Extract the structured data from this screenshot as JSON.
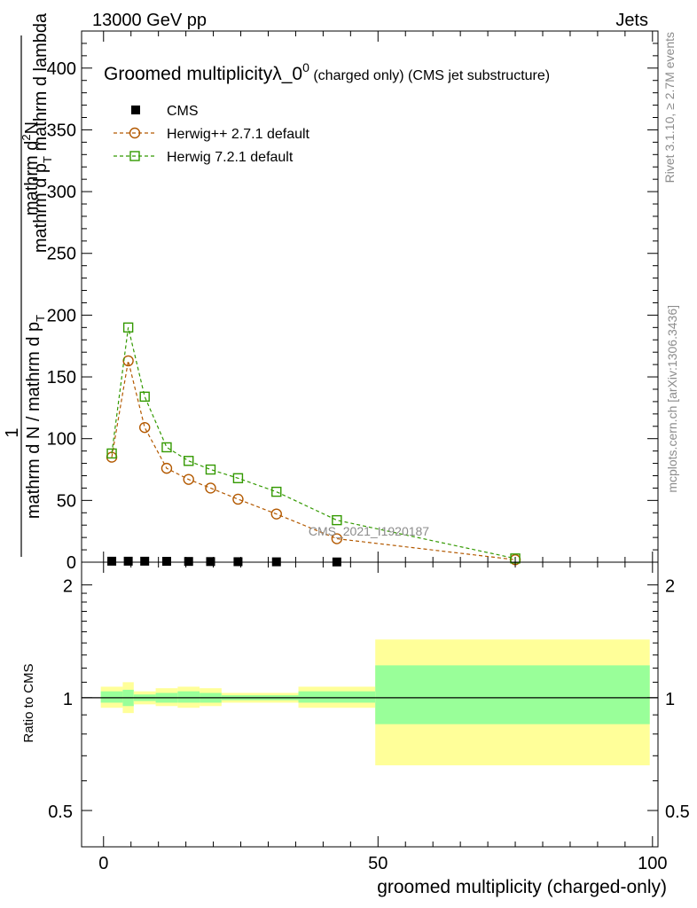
{
  "header": {
    "left": "13000 GeV pp",
    "right": "Jets"
  },
  "side_labels": {
    "rivet": "Rivet 3.1.10, ≥ 2.7M events",
    "mcplots": "mcplots.cern.ch [arXiv:1306.3436]"
  },
  "watermark": "CMS_2021_I1920187",
  "chart_data": [
    {
      "type": "line",
      "title_main": "Groomed multiplicityλ_0",
      "title_sup": "0",
      "title_sub": " (charged only) (CMS jet substructure)",
      "ylabel_num": "mathrm d²N",
      "ylabel_den": "mathrm d p_{T} mathrm d lambda",
      "ylabel_num_display": "mathrm d",
      "ylabel_num_sup": "2",
      "ylabel_num_tail": "N",
      "ylabel_den_display_a": "mathrm d p",
      "ylabel_den_display_sub": "T",
      "ylabel_den_display_b": " mathrm d lambda",
      "ylabel_outer_num": "1",
      "ylabel_outer_den_a": "mathrm d N / mathrm d p",
      "ylabel_outer_den_sub": "T",
      "ylim": [
        0,
        430
      ],
      "xlim": [
        -4,
        101
      ],
      "yticks": [
        0,
        50,
        100,
        150,
        200,
        250,
        300,
        350,
        400
      ],
      "ytick_labels": [
        "0",
        "50",
        "100",
        "150",
        "200",
        "250",
        "300",
        "350",
        "400"
      ],
      "legend_position": "top-left",
      "series": [
        {
          "name": "CMS",
          "color": "#000000",
          "marker": "filled-square",
          "x": [
            1.5,
            4.5,
            7.5,
            11.5,
            15.5,
            19.5,
            24.5,
            31.5,
            42.5
          ],
          "y": [
            0.8,
            0.8,
            0.8,
            0.7,
            0.6,
            0.5,
            0.4,
            0.3,
            0.2
          ]
        },
        {
          "name": "Herwig++ 2.7.1 default",
          "color": "#b35900",
          "marker": "open-circle",
          "x": [
            1.5,
            4.5,
            7.5,
            11.5,
            15.5,
            19.5,
            24.5,
            31.5,
            42.5,
            75
          ],
          "y": [
            85,
            163,
            109,
            76,
            67,
            60,
            51,
            39,
            19,
            2
          ]
        },
        {
          "name": "Herwig 7.2.1 default",
          "color": "#339900",
          "marker": "open-square",
          "x": [
            1.5,
            4.5,
            7.5,
            11.5,
            15.5,
            19.5,
            24.5,
            31.5,
            42.5,
            75
          ],
          "y": [
            88,
            190,
            134,
            93,
            82,
            75,
            68,
            57,
            34,
            3
          ]
        }
      ]
    },
    {
      "type": "area",
      "ylabel": "Ratio to CMS",
      "xlabel": "groomed multiplicity (charged-only)",
      "log_y": true,
      "ylim": [
        0.4,
        2.3
      ],
      "xlim": [
        -4,
        101
      ],
      "yticks": [
        0.5,
        1,
        2
      ],
      "ytick_labels": [
        "0.5",
        "1",
        "2"
      ],
      "xticks": [
        0,
        50,
        100
      ],
      "xtick_labels": [
        "0",
        "50",
        "100"
      ],
      "reference_line": 1,
      "bands": [
        {
          "x0": -0.5,
          "x1": 3.5,
          "yellow": [
            0.94,
            1.07
          ],
          "green": [
            0.97,
            1.04
          ]
        },
        {
          "x0": 3.5,
          "x1": 5.5,
          "yellow": [
            0.91,
            1.1
          ],
          "green": [
            0.95,
            1.05
          ]
        },
        {
          "x0": 5.5,
          "x1": 9.5,
          "yellow": [
            0.96,
            1.04
          ],
          "green": [
            0.98,
            1.02
          ]
        },
        {
          "x0": 9.5,
          "x1": 13.5,
          "yellow": [
            0.95,
            1.06
          ],
          "green": [
            0.97,
            1.03
          ]
        },
        {
          "x0": 13.5,
          "x1": 17.5,
          "yellow": [
            0.94,
            1.07
          ],
          "green": [
            0.97,
            1.04
          ]
        },
        {
          "x0": 17.5,
          "x1": 21.5,
          "yellow": [
            0.95,
            1.06
          ],
          "green": [
            0.97,
            1.03
          ]
        },
        {
          "x0": 21.5,
          "x1": 35.5,
          "yellow": [
            0.97,
            1.03
          ],
          "green": [
            0.985,
            1.015
          ]
        },
        {
          "x0": 35.5,
          "x1": 49.5,
          "yellow": [
            0.94,
            1.07
          ],
          "green": [
            0.97,
            1.04
          ]
        },
        {
          "x0": 49.5,
          "x1": 99.5,
          "yellow": [
            0.66,
            1.43
          ],
          "green": [
            0.85,
            1.22
          ]
        }
      ]
    }
  ]
}
